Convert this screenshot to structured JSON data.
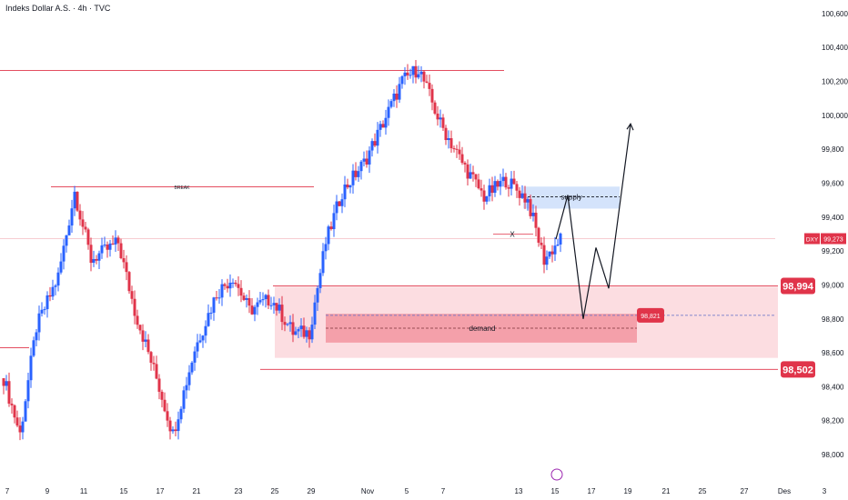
{
  "header": {
    "title": "Indeks Dollar A.S. · 4h · TVC"
  },
  "colors": {
    "up": "#2962ff",
    "down": "#e0344a",
    "level_line": "#e0344a",
    "demand_outer": "#fbd5da",
    "demand_inner": "#f28b97",
    "supply_box": "#cfe0fb",
    "price_badge": "#e0344a",
    "projection": "#131722"
  },
  "chart_data": {
    "type": "candlestick",
    "symbol_badge": "DXY",
    "current_price": "99,273",
    "y_axis": {
      "ylim": [
        97.85,
        100.68
      ],
      "ticks": [
        "100,600",
        "100,400",
        "100,200",
        "100,000",
        "99,800",
        "99,600",
        "99,400",
        "99,200",
        "99,000",
        "98,800",
        "98,600",
        "98,400",
        "98,200",
        "98,000"
      ],
      "tick_values": [
        100.6,
        100.4,
        100.2,
        100.0,
        99.8,
        99.6,
        99.4,
        99.2,
        99.0,
        98.8,
        98.6,
        98.4,
        98.2,
        98.0
      ]
    },
    "x_axis": {
      "ticks": [
        "7",
        "9",
        "11",
        "15",
        "17",
        "21",
        "23",
        "25",
        "29",
        "Nov",
        "5",
        "7",
        "13",
        "15",
        "17",
        "19",
        "21",
        "25",
        "27",
        "Des",
        "3"
      ]
    },
    "anchors": [
      {
        "i": 0,
        "p": 98.45
      },
      {
        "i": 6,
        "p": 98.12
      },
      {
        "i": 12,
        "p": 98.75
      },
      {
        "i": 20,
        "p": 99.05
      },
      {
        "i": 26,
        "p": 99.55
      },
      {
        "i": 32,
        "p": 99.15
      },
      {
        "i": 42,
        "p": 99.25
      },
      {
        "i": 48,
        "p": 98.85
      },
      {
        "i": 56,
        "p": 98.45
      },
      {
        "i": 62,
        "p": 98.12
      },
      {
        "i": 70,
        "p": 98.62
      },
      {
        "i": 78,
        "p": 98.95
      },
      {
        "i": 84,
        "p": 99.05
      },
      {
        "i": 90,
        "p": 98.85
      },
      {
        "i": 98,
        "p": 98.92
      },
      {
        "i": 106,
        "p": 98.72
      },
      {
        "i": 112,
        "p": 98.72
      },
      {
        "i": 118,
        "p": 99.25
      },
      {
        "i": 124,
        "p": 99.55
      },
      {
        "i": 132,
        "p": 99.72
      },
      {
        "i": 138,
        "p": 99.92
      },
      {
        "i": 146,
        "p": 100.2
      },
      {
        "i": 152,
        "p": 100.28
      },
      {
        "i": 160,
        "p": 99.95
      },
      {
        "i": 168,
        "p": 99.72
      },
      {
        "i": 176,
        "p": 99.52
      },
      {
        "i": 184,
        "p": 99.62
      },
      {
        "i": 192,
        "p": 99.5
      },
      {
        "i": 198,
        "p": 99.15
      },
      {
        "i": 204,
        "p": 99.27
      }
    ],
    "levels": [
      {
        "name": "top-resistance",
        "value": 100.265
      },
      {
        "name": "break-level",
        "value": 99.578,
        "label": "BREAK"
      },
      {
        "name": "lower-level-left",
        "value": 98.63
      },
      {
        "name": "level-98994",
        "value": 98.994,
        "label": "98,994"
      },
      {
        "name": "level-98502",
        "value": 98.502,
        "label": "98,502"
      },
      {
        "name": "x-level",
        "value": 99.3,
        "label": "X"
      }
    ],
    "zones": {
      "supply": {
        "label": "supply",
        "top": 99.58,
        "bottom": 99.45,
        "mid": 99.52
      },
      "demand_outer": {
        "top": 98.99,
        "bottom": 98.57
      },
      "demand_inner": {
        "label": "demand",
        "top": 98.83,
        "bottom": 98.66,
        "price_label": "98,821",
        "dash1": 98.821,
        "dash2": 98.745
      }
    },
    "projection": [
      99.27,
      99.53,
      98.8,
      99.22,
      98.98,
      99.95
    ],
    "grid": false
  }
}
